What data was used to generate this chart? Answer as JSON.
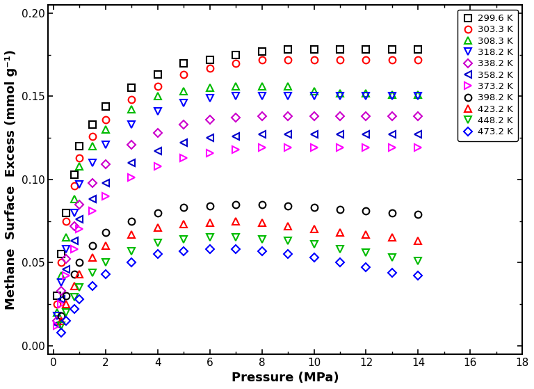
{
  "xlabel": "Pressure (MPa)",
  "ylabel": "Methane  Surface  Excess (mmol g⁻¹)",
  "xlim": [
    -0.2,
    18
  ],
  "ylim": [
    -0.005,
    0.205
  ],
  "xticks": [
    0,
    2,
    4,
    6,
    8,
    10,
    12,
    14,
    16,
    18
  ],
  "yticks": [
    0.0,
    0.05,
    0.1,
    0.15,
    0.2
  ],
  "series": [
    {
      "label": "299.6 K",
      "color": "black",
      "marker": "s",
      "markersize": 7,
      "pressure": [
        0.15,
        0.3,
        0.5,
        0.8,
        1.0,
        1.5,
        2.0,
        3.0,
        4.0,
        5.0,
        6.0,
        7.0,
        8.0,
        9.0,
        10.0,
        11.0,
        12.0,
        13.0,
        14.0
      ],
      "excess": [
        0.03,
        0.055,
        0.08,
        0.103,
        0.12,
        0.133,
        0.144,
        0.155,
        0.163,
        0.17,
        0.172,
        0.175,
        0.177,
        0.178,
        0.178,
        0.178,
        0.178,
        0.178,
        0.178
      ]
    },
    {
      "label": "303.3 K",
      "color": "#ff0000",
      "marker": "o",
      "markersize": 7,
      "pressure": [
        0.15,
        0.3,
        0.5,
        0.8,
        1.0,
        1.5,
        2.0,
        3.0,
        4.0,
        5.0,
        6.0,
        7.0,
        8.0,
        9.0,
        10.0,
        11.0,
        12.0,
        13.0,
        14.0
      ],
      "excess": [
        0.025,
        0.05,
        0.075,
        0.096,
        0.113,
        0.126,
        0.136,
        0.148,
        0.156,
        0.163,
        0.167,
        0.17,
        0.172,
        0.172,
        0.172,
        0.172,
        0.172,
        0.172,
        0.172
      ]
    },
    {
      "label": "308.3 K",
      "color": "#00bb00",
      "marker": "^",
      "markersize": 7,
      "pressure": [
        0.15,
        0.3,
        0.5,
        0.8,
        1.0,
        1.5,
        2.0,
        3.0,
        4.0,
        5.0,
        6.0,
        7.0,
        8.0,
        9.0,
        10.0,
        11.0,
        12.0,
        13.0,
        14.0
      ],
      "excess": [
        0.02,
        0.042,
        0.065,
        0.088,
        0.108,
        0.12,
        0.13,
        0.142,
        0.15,
        0.153,
        0.155,
        0.156,
        0.156,
        0.156,
        0.153,
        0.152,
        0.152,
        0.151,
        0.151
      ]
    },
    {
      "label": "318.2 K",
      "color": "#0000ff",
      "marker": "v",
      "markersize": 7,
      "pressure": [
        0.15,
        0.3,
        0.5,
        0.8,
        1.0,
        1.5,
        2.0,
        3.0,
        4.0,
        5.0,
        6.0,
        7.0,
        8.0,
        9.0,
        10.0,
        11.0,
        12.0,
        13.0,
        14.0
      ],
      "excess": [
        0.018,
        0.038,
        0.058,
        0.08,
        0.097,
        0.11,
        0.121,
        0.133,
        0.141,
        0.146,
        0.149,
        0.15,
        0.15,
        0.15,
        0.15,
        0.15,
        0.15,
        0.15,
        0.15
      ]
    },
    {
      "label": "338.2 K",
      "color": "#cc00cc",
      "marker": "D",
      "markersize": 6,
      "pressure": [
        0.15,
        0.3,
        0.5,
        0.8,
        1.0,
        1.5,
        2.0,
        3.0,
        4.0,
        5.0,
        6.0,
        7.0,
        8.0,
        9.0,
        10.0,
        11.0,
        12.0,
        13.0,
        14.0
      ],
      "excess": [
        0.015,
        0.033,
        0.052,
        0.072,
        0.085,
        0.098,
        0.109,
        0.121,
        0.128,
        0.133,
        0.136,
        0.137,
        0.138,
        0.138,
        0.138,
        0.138,
        0.138,
        0.138,
        0.138
      ]
    },
    {
      "label": "358.2 K",
      "color": "#0000cc",
      "marker": "<",
      "markersize": 7,
      "pressure": [
        0.15,
        0.3,
        0.5,
        0.8,
        1.0,
        1.5,
        2.0,
        3.0,
        4.0,
        5.0,
        6.0,
        7.0,
        8.0,
        9.0,
        10.0,
        11.0,
        12.0,
        13.0,
        14.0
      ],
      "excess": [
        0.013,
        0.028,
        0.046,
        0.063,
        0.076,
        0.088,
        0.098,
        0.11,
        0.117,
        0.122,
        0.125,
        0.126,
        0.127,
        0.127,
        0.127,
        0.127,
        0.127,
        0.127,
        0.127
      ]
    },
    {
      "label": "373.2 K",
      "color": "#ff00ff",
      "marker": ">",
      "markersize": 7,
      "pressure": [
        0.15,
        0.3,
        0.5,
        0.8,
        1.0,
        1.5,
        2.0,
        3.0,
        4.0,
        5.0,
        6.0,
        7.0,
        8.0,
        9.0,
        10.0,
        11.0,
        12.0,
        13.0,
        14.0
      ],
      "excess": [
        0.012,
        0.025,
        0.042,
        0.058,
        0.07,
        0.081,
        0.09,
        0.101,
        0.108,
        0.113,
        0.116,
        0.118,
        0.119,
        0.119,
        0.119,
        0.119,
        0.119,
        0.119,
        0.119
      ]
    },
    {
      "label": "398.2 K",
      "color": "black",
      "marker": "o",
      "markersize": 7,
      "pressure": [
        0.3,
        0.5,
        0.8,
        1.0,
        1.5,
        2.0,
        3.0,
        4.0,
        5.0,
        6.0,
        7.0,
        8.0,
        9.0,
        10.0,
        11.0,
        12.0,
        13.0,
        14.0
      ],
      "excess": [
        0.018,
        0.03,
        0.043,
        0.05,
        0.06,
        0.068,
        0.075,
        0.08,
        0.083,
        0.084,
        0.085,
        0.085,
        0.084,
        0.083,
        0.082,
        0.081,
        0.08,
        0.079
      ]
    },
    {
      "label": "423.2 K",
      "color": "#ff0000",
      "marker": "^",
      "markersize": 7,
      "pressure": [
        0.3,
        0.5,
        0.8,
        1.0,
        1.5,
        2.0,
        3.0,
        4.0,
        5.0,
        6.0,
        7.0,
        8.0,
        9.0,
        10.0,
        11.0,
        12.0,
        13.0,
        14.0
      ],
      "excess": [
        0.015,
        0.025,
        0.036,
        0.043,
        0.053,
        0.06,
        0.067,
        0.071,
        0.073,
        0.074,
        0.075,
        0.074,
        0.072,
        0.07,
        0.068,
        0.067,
        0.065,
        0.063
      ]
    },
    {
      "label": "448.2 K",
      "color": "#00bb00",
      "marker": "v",
      "markersize": 7,
      "pressure": [
        0.3,
        0.5,
        0.8,
        1.0,
        1.5,
        2.0,
        3.0,
        4.0,
        5.0,
        6.0,
        7.0,
        8.0,
        9.0,
        10.0,
        11.0,
        12.0,
        13.0,
        14.0
      ],
      "excess": [
        0.012,
        0.02,
        0.029,
        0.035,
        0.044,
        0.05,
        0.057,
        0.062,
        0.064,
        0.065,
        0.065,
        0.064,
        0.063,
        0.061,
        0.058,
        0.056,
        0.053,
        0.051
      ]
    },
    {
      "label": "473.2 K",
      "color": "#0000ff",
      "marker": "D",
      "markersize": 6,
      "pressure": [
        0.3,
        0.5,
        0.8,
        1.0,
        1.5,
        2.0,
        3.0,
        4.0,
        5.0,
        6.0,
        7.0,
        8.0,
        9.0,
        10.0,
        11.0,
        12.0,
        13.0,
        14.0
      ],
      "excess": [
        0.008,
        0.015,
        0.022,
        0.028,
        0.036,
        0.043,
        0.05,
        0.055,
        0.057,
        0.058,
        0.058,
        0.057,
        0.055,
        0.053,
        0.05,
        0.047,
        0.044,
        0.042
      ]
    }
  ]
}
